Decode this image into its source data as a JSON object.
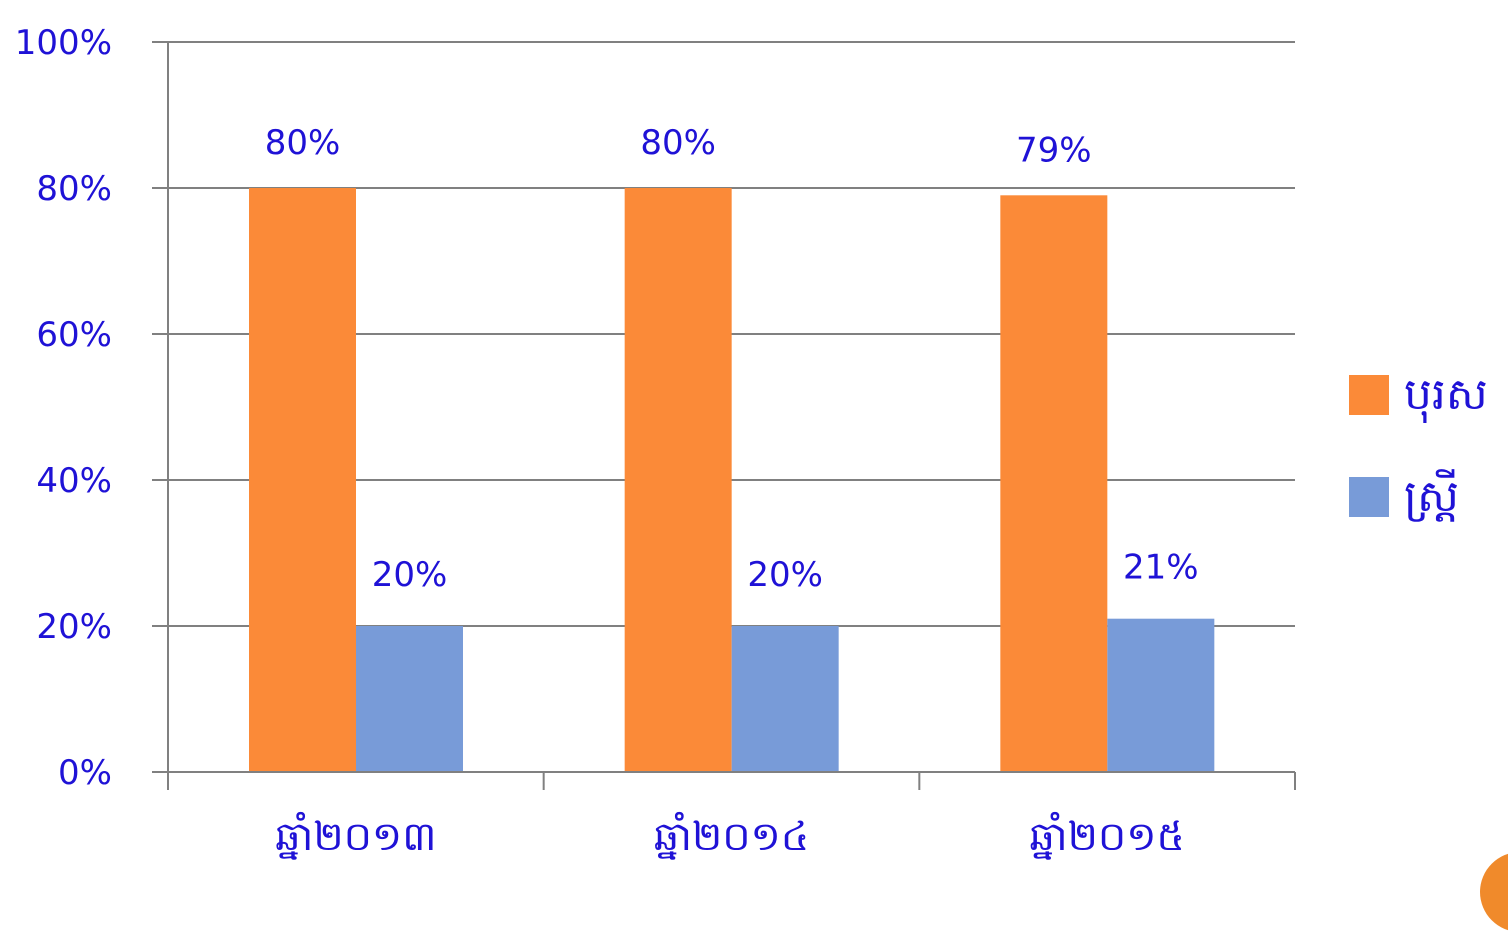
{
  "chart_data": {
    "type": "bar",
    "categories": [
      "ឆ្នាំ២០១៣",
      "ឆ្នាំ២០១៤",
      "ឆ្នាំ២០១៥"
    ],
    "series": [
      {
        "name": "បុរស",
        "values": [
          80,
          80,
          79
        ],
        "labels": [
          "80%",
          "80%",
          "79%"
        ],
        "color": "#fb8a38"
      },
      {
        "name": "ស្ត្រី",
        "values": [
          20,
          20,
          21
        ],
        "labels": [
          "20%",
          "20%",
          "21%"
        ],
        "color": "#789bd8"
      }
    ],
    "y_ticks": [
      "0%",
      "20%",
      "40%",
      "60%",
      "80%",
      "100%"
    ],
    "ylim": [
      0,
      100
    ],
    "grid": true,
    "legend": "right",
    "text_color": "#1f12d6",
    "grid_color": "#808080"
  }
}
